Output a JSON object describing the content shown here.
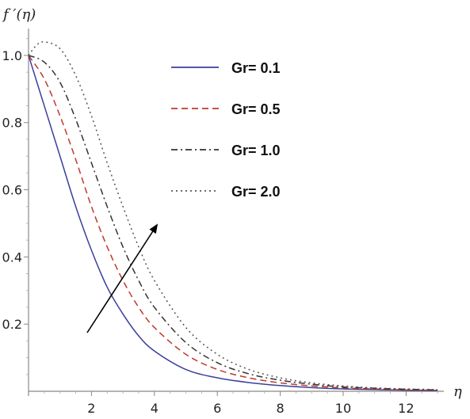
{
  "chart_data": {
    "type": "line",
    "title": "",
    "xlabel": "η",
    "ylabel": "f ′(η)",
    "xlim": [
      0,
      13.2
    ],
    "ylim": [
      0,
      1.08
    ],
    "x_ticks": [
      2,
      4,
      6,
      8,
      10,
      12
    ],
    "y_ticks": [
      0.2,
      0.4,
      0.6,
      0.8,
      1.0
    ],
    "x_tick_labels": [
      "2",
      "4",
      "6",
      "8",
      "10",
      "12"
    ],
    "y_tick_labels": [
      "0.2",
      "0.4",
      "0.6",
      "0.8",
      "1.0"
    ],
    "grid": false,
    "legend_position": "top-right",
    "annotation": "arrow indicating increasing Gr",
    "series": [
      {
        "name": "Gr= 0.1",
        "color": "#3a3f9a",
        "dash": "solid",
        "x": [
          0,
          0.5,
          1,
          1.5,
          2,
          2.5,
          3,
          3.5,
          4,
          5,
          6,
          7,
          8,
          9,
          10,
          11,
          12,
          13
        ],
        "y": [
          1.0,
          0.85,
          0.7,
          0.55,
          0.42,
          0.31,
          0.23,
          0.165,
          0.12,
          0.065,
          0.04,
          0.026,
          0.017,
          0.011,
          0.007,
          0.005,
          0.003,
          0.002
        ]
      },
      {
        "name": "Gr= 0.5",
        "color": "#c0392b",
        "dash": "dashed",
        "x": [
          0,
          0.5,
          1,
          1.5,
          2,
          2.5,
          3,
          3.5,
          4,
          5,
          6,
          7,
          8,
          9,
          10,
          11,
          12,
          13
        ],
        "y": [
          1.0,
          0.93,
          0.82,
          0.69,
          0.55,
          0.43,
          0.33,
          0.25,
          0.19,
          0.11,
          0.065,
          0.04,
          0.025,
          0.016,
          0.01,
          0.007,
          0.004,
          0.003
        ]
      },
      {
        "name": "Gr= 1.0",
        "color": "#333333",
        "dash": "dashdot",
        "x": [
          0,
          0.5,
          1,
          1.5,
          2,
          2.5,
          3,
          3.5,
          4,
          5,
          6,
          7,
          8,
          9,
          10,
          11,
          12,
          13
        ],
        "y": [
          1.0,
          0.98,
          0.92,
          0.81,
          0.68,
          0.55,
          0.43,
          0.33,
          0.25,
          0.145,
          0.085,
          0.052,
          0.033,
          0.021,
          0.013,
          0.009,
          0.006,
          0.004
        ]
      },
      {
        "name": "Gr= 2.0",
        "color": "#555555",
        "dash": "dotted",
        "x": [
          0,
          0.25,
          0.5,
          1,
          1.5,
          2,
          2.5,
          3,
          3.5,
          4,
          5,
          6,
          7,
          8,
          9,
          10,
          11,
          12,
          13
        ],
        "y": [
          1.0,
          1.03,
          1.04,
          1.02,
          0.94,
          0.82,
          0.68,
          0.55,
          0.43,
          0.33,
          0.19,
          0.11,
          0.065,
          0.04,
          0.025,
          0.016,
          0.01,
          0.007,
          0.005
        ]
      }
    ]
  }
}
